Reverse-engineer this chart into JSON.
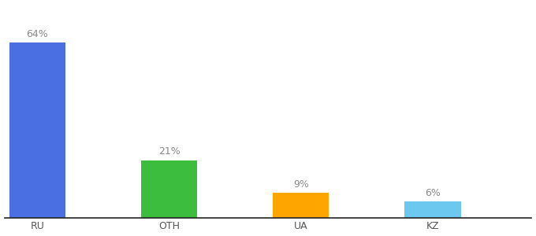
{
  "categories": [
    "RU",
    "OTH",
    "UA",
    "KZ"
  ],
  "values": [
    64,
    21,
    9,
    6
  ],
  "labels": [
    "64%",
    "21%",
    "9%",
    "6%"
  ],
  "bar_colors": [
    "#4A6FE3",
    "#3DBD3D",
    "#FFA500",
    "#6DC8F0"
  ],
  "background_color": "#ffffff",
  "text_color": "#888888",
  "label_fontsize": 9,
  "tick_fontsize": 9,
  "ylim": [
    0,
    78
  ],
  "xlim": [
    -0.5,
    7.5
  ],
  "bar_width": 0.85,
  "bar_positions": [
    0,
    2,
    4,
    6
  ]
}
